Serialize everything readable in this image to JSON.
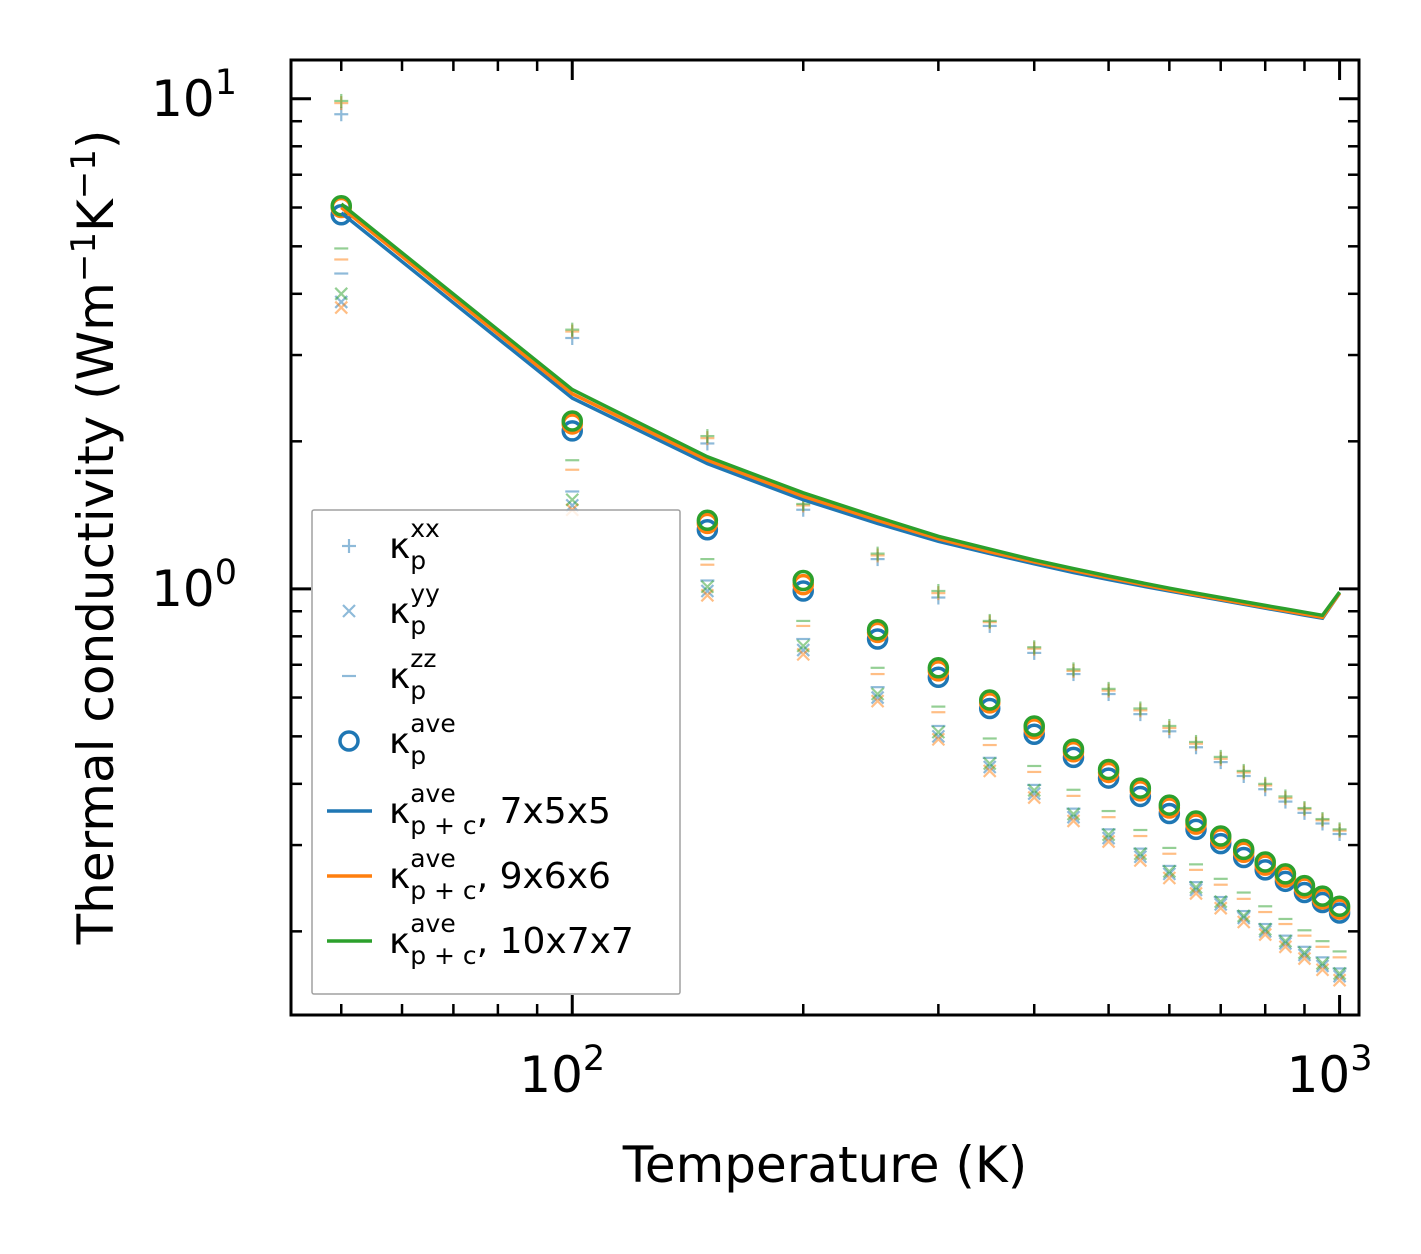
{
  "chart_data": {
    "type": "scatter",
    "xscale": "log",
    "yscale": "log",
    "xlabel": "Temperature (K)",
    "ylabel": "Thermal conductivity (Wm",
    "ylabel_parts": [
      "Thermal conductivity (Wm",
      "−1",
      "K",
      "−1",
      ")"
    ],
    "xlim": [
      43,
      1060
    ],
    "ylim": [
      0.135,
      12
    ],
    "xticks": [
      {
        "base": "10",
        "exp": "2",
        "value": 100
      },
      {
        "base": "10",
        "exp": "3",
        "value": 1000
      }
    ],
    "yticks": [
      {
        "base": "10",
        "exp": "0",
        "value": 1
      },
      {
        "base": "10",
        "exp": "1",
        "value": 10
      }
    ],
    "temperatures": [
      50,
      100,
      150,
      200,
      250,
      300,
      350,
      400,
      450,
      500,
      550,
      600,
      650,
      700,
      750,
      800,
      850,
      900,
      950,
      1000
    ],
    "colors": {
      "blue": "#1f77b4",
      "orange": "#ff7f0e",
      "green": "#2ca02c"
    },
    "series": [
      {
        "name": "7x5x5",
        "color": "#1f77b4",
        "kxx": [
          9.3,
          3.25,
          1.98,
          1.45,
          1.15,
          0.96,
          0.84,
          0.74,
          0.67,
          0.61,
          0.555,
          0.512,
          0.475,
          0.443,
          0.415,
          0.39,
          0.368,
          0.349,
          0.332,
          0.316
        ],
        "kyy": [
          3.85,
          1.48,
          0.99,
          0.75,
          0.6,
          0.5,
          0.433,
          0.382,
          0.342,
          0.31,
          0.284,
          0.262,
          0.243,
          0.227,
          0.213,
          0.2,
          0.189,
          0.179,
          0.17,
          0.162
        ],
        "kzz": [
          4.4,
          1.58,
          1.04,
          0.79,
          0.63,
          0.525,
          0.452,
          0.398,
          0.356,
          0.323,
          0.295,
          0.272,
          0.252,
          0.235,
          0.22,
          0.207,
          0.196,
          0.186,
          0.177,
          0.168
        ],
        "kave": [
          5.8,
          2.1,
          1.32,
          0.99,
          0.79,
          0.66,
          0.57,
          0.505,
          0.453,
          0.411,
          0.377,
          0.348,
          0.323,
          0.302,
          0.283,
          0.267,
          0.253,
          0.24,
          0.229,
          0.218
        ],
        "kpc": [
          5.85,
          2.45,
          1.8,
          1.52,
          1.36,
          1.25,
          1.18,
          1.125,
          1.08,
          1.045,
          1.015,
          0.99,
          0.968,
          0.948,
          0.93,
          0.913,
          0.898,
          0.884,
          0.871,
          0.98
        ]
      },
      {
        "name": "9x6x6",
        "color": "#ff7f0e",
        "kxx": [
          9.8,
          3.35,
          2.03,
          1.48,
          1.17,
          0.98,
          0.855,
          0.755,
          0.68,
          0.62,
          0.565,
          0.52,
          0.483,
          0.45,
          0.422,
          0.397,
          0.374,
          0.355,
          0.337,
          0.321
        ],
        "kyy": [
          3.75,
          1.45,
          0.97,
          0.735,
          0.59,
          0.493,
          0.425,
          0.375,
          0.336,
          0.305,
          0.279,
          0.257,
          0.239,
          0.223,
          0.209,
          0.197,
          0.186,
          0.176,
          0.167,
          0.159
        ],
        "kzz": [
          4.7,
          1.75,
          1.12,
          0.84,
          0.67,
          0.56,
          0.48,
          0.423,
          0.378,
          0.342,
          0.313,
          0.288,
          0.267,
          0.249,
          0.233,
          0.219,
          0.207,
          0.196,
          0.186,
          0.177
        ],
        "kave": [
          6.0,
          2.17,
          1.36,
          1.02,
          0.815,
          0.68,
          0.585,
          0.518,
          0.465,
          0.422,
          0.387,
          0.357,
          0.331,
          0.309,
          0.29,
          0.273,
          0.258,
          0.245,
          0.233,
          0.222
        ],
        "kpc": [
          6.0,
          2.5,
          1.83,
          1.545,
          1.38,
          1.265,
          1.19,
          1.135,
          1.09,
          1.053,
          1.022,
          0.995,
          0.972,
          0.952,
          0.934,
          0.917,
          0.902,
          0.888,
          0.875,
          0.98
        ]
      },
      {
        "name": "10x7x7",
        "color": "#2ca02c",
        "kxx": [
          9.9,
          3.38,
          2.05,
          1.49,
          1.18,
          0.99,
          0.86,
          0.76,
          0.685,
          0.625,
          0.57,
          0.525,
          0.487,
          0.454,
          0.425,
          0.4,
          0.377,
          0.357,
          0.339,
          0.323
        ],
        "kyy": [
          4.0,
          1.52,
          1.01,
          0.765,
          0.61,
          0.51,
          0.44,
          0.388,
          0.347,
          0.315,
          0.288,
          0.265,
          0.246,
          0.23,
          0.215,
          0.202,
          0.191,
          0.181,
          0.172,
          0.164
        ],
        "kzz": [
          4.95,
          1.83,
          1.15,
          0.86,
          0.69,
          0.575,
          0.495,
          0.435,
          0.389,
          0.352,
          0.322,
          0.296,
          0.274,
          0.256,
          0.24,
          0.225,
          0.212,
          0.201,
          0.191,
          0.182
        ],
        "kave": [
          6.05,
          2.2,
          1.38,
          1.04,
          0.825,
          0.69,
          0.593,
          0.525,
          0.471,
          0.428,
          0.392,
          0.362,
          0.336,
          0.313,
          0.294,
          0.277,
          0.262,
          0.248,
          0.236,
          0.225
        ],
        "kpc": [
          6.1,
          2.55,
          1.86,
          1.57,
          1.4,
          1.28,
          1.205,
          1.145,
          1.1,
          1.062,
          1.03,
          1.003,
          0.98,
          0.96,
          0.942,
          0.925,
          0.91,
          0.896,
          0.883,
          0.985
        ]
      }
    ],
    "legend": {
      "placement": "lower-left",
      "entries": [
        {
          "marker": "plus",
          "base": "κ",
          "sup": "xx",
          "sub": "p",
          "suffix": ""
        },
        {
          "marker": "x",
          "base": "κ",
          "sup": "yy",
          "sub": "p",
          "suffix": ""
        },
        {
          "marker": "dash",
          "base": "κ",
          "sup": "zz",
          "sub": "p",
          "suffix": ""
        },
        {
          "marker": "circle",
          "base": "κ",
          "sup": "ave",
          "sub": "p",
          "suffix": ""
        },
        {
          "marker": "line-blue",
          "base": "κ",
          "sup": "ave",
          "sub": "p + c",
          "suffix": ", 7x5x5"
        },
        {
          "marker": "line-orange",
          "base": "κ",
          "sup": "ave",
          "sub": "p + c",
          "suffix": ", 9x6x6"
        },
        {
          "marker": "line-green",
          "base": "κ",
          "sup": "ave",
          "sub": "p + c",
          "suffix": ", 10x7x7"
        }
      ]
    }
  }
}
